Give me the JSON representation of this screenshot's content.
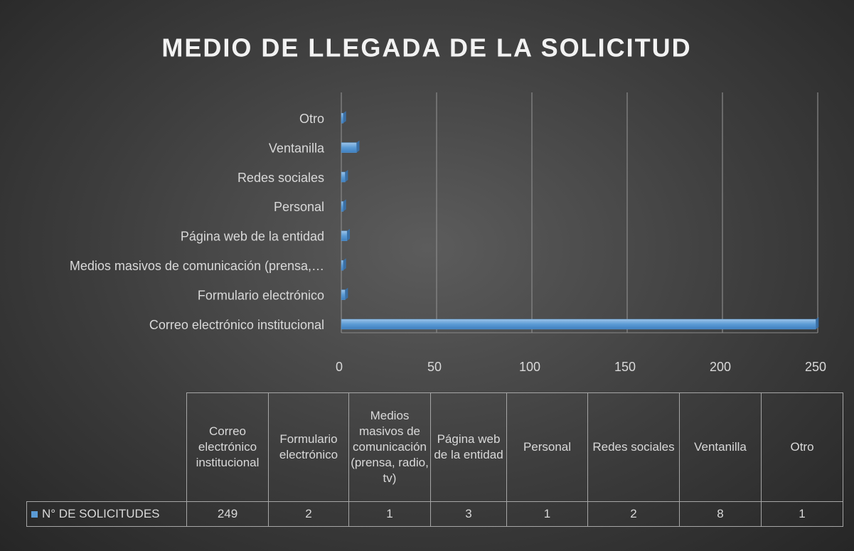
{
  "chart_data": {
    "type": "bar",
    "orientation": "horizontal",
    "title": "MEDIO DE LLEGADA DE LA SOLICITUD",
    "categories": [
      "Correo electrónico institucional",
      "Formulario electrónico",
      "Medios masivos de comunicación (prensa, radio, tv)",
      "Página web de la entidad",
      "Personal",
      "Redes sociales",
      "Ventanilla",
      "Otro"
    ],
    "category_axis_labels": [
      "Correo electrónico institucional",
      "Formulario electrónico",
      "Medios masivos de comunicación (prensa,…",
      "Página web de la entidad",
      "Personal",
      "Redes sociales",
      "Ventanilla",
      "Otro"
    ],
    "series": [
      {
        "name": "N° DE SOLICITUDES",
        "color": "#5b9bd5",
        "values": [
          249,
          2,
          1,
          3,
          1,
          2,
          8,
          1
        ]
      }
    ],
    "xlim": [
      0,
      250
    ],
    "xticks": [
      0,
      50,
      100,
      150,
      200,
      250
    ],
    "grid": true,
    "data_table": true
  }
}
